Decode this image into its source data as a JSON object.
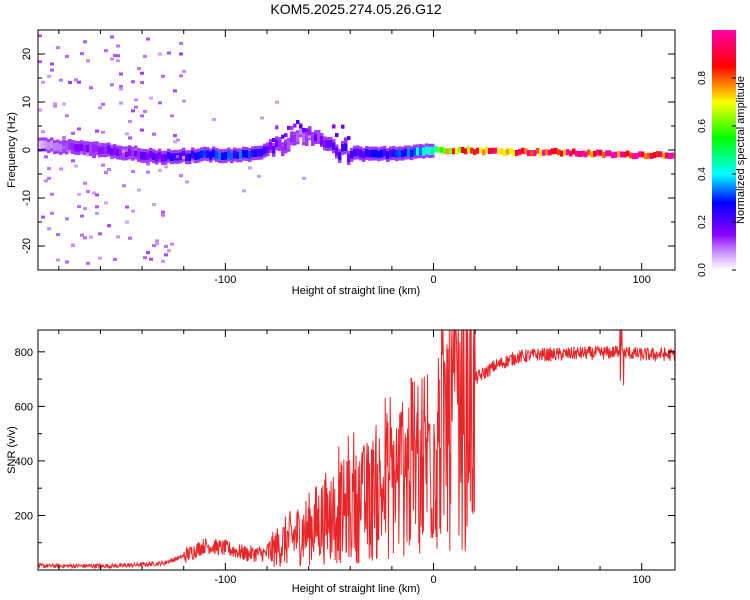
{
  "title": "KOM5.2025.274.05.26.G12",
  "colors": {
    "snr_line": "#e8262a",
    "axis": "#000000"
  },
  "chart_data": [
    {
      "type": "heatmap",
      "title": "KOM5.2025.274.05.26.G12",
      "xlabel": "Height of straight line (km)",
      "ylabel": "Frequency (Hz)",
      "xlim": [
        -190,
        116
      ],
      "ylim": [
        -25,
        25
      ],
      "x_ticks": [
        -100,
        0,
        100
      ],
      "y_ticks": [
        -20,
        -10,
        0,
        10,
        20
      ],
      "grid": false,
      "colorbar": {
        "label": "Normalized spectral amplitude",
        "range": [
          0.0,
          1.0
        ],
        "ticks": [
          0.0,
          0.2,
          0.4,
          0.6,
          0.8
        ],
        "colormap": "rainbow (violet to red)"
      },
      "ridge": [
        {
          "x": -190,
          "freq": 1.0,
          "amp": 0.05
        },
        {
          "x": -170,
          "freq": 0.5,
          "amp": 0.15
        },
        {
          "x": -150,
          "freq": -0.5,
          "amp": 0.15
        },
        {
          "x": -130,
          "freq": -1.5,
          "amp": 0.2
        },
        {
          "x": -110,
          "freq": -1.0,
          "amp": 0.3
        },
        {
          "x": -90,
          "freq": -1.0,
          "amp": 0.3
        },
        {
          "x": -75,
          "freq": 0.5,
          "amp": 0.15
        },
        {
          "x": -65,
          "freq": 3.0,
          "amp": 0.1
        },
        {
          "x": -55,
          "freq": 2.0,
          "amp": 0.15
        },
        {
          "x": -45,
          "freq": -0.5,
          "amp": 0.2
        },
        {
          "x": -30,
          "freq": -1.0,
          "amp": 0.25
        },
        {
          "x": -15,
          "freq": -0.5,
          "amp": 0.3
        },
        {
          "x": 0,
          "freq": 0.0,
          "amp": 0.5
        },
        {
          "x": 10,
          "freq": 0.0,
          "amp": 0.8
        },
        {
          "x": 30,
          "freq": -0.3,
          "amp": 0.9
        },
        {
          "x": 60,
          "freq": -0.5,
          "amp": 0.95
        },
        {
          "x": 90,
          "freq": -1.0,
          "amp": 1.0
        },
        {
          "x": 116,
          "freq": -1.0,
          "amp": 0.95
        }
      ]
    },
    {
      "type": "line",
      "xlabel": "Height of straight line (km)",
      "ylabel": "SNR (v/v)",
      "xlim": [
        -190,
        116
      ],
      "ylim": [
        0,
        880
      ],
      "x_ticks": [
        -100,
        0,
        100
      ],
      "y_ticks": [
        200,
        400,
        600,
        800
      ],
      "grid": false,
      "series": [
        {
          "color": "#e8262a",
          "x": [
            -190,
            -170,
            -150,
            -130,
            -120,
            -110,
            -100,
            -90,
            -80,
            -70,
            -60,
            -50,
            -40,
            -30,
            -20,
            -10,
            0,
            10,
            20,
            30,
            40,
            50,
            60,
            70,
            80,
            90,
            100,
            110,
            116
          ],
          "y": [
            15,
            15,
            15,
            25,
            50,
            90,
            80,
            60,
            60,
            110,
            150,
            200,
            220,
            260,
            320,
            380,
            450,
            600,
            700,
            750,
            780,
            790,
            790,
            795,
            795,
            800,
            790,
            790,
            790
          ]
        }
      ]
    }
  ]
}
